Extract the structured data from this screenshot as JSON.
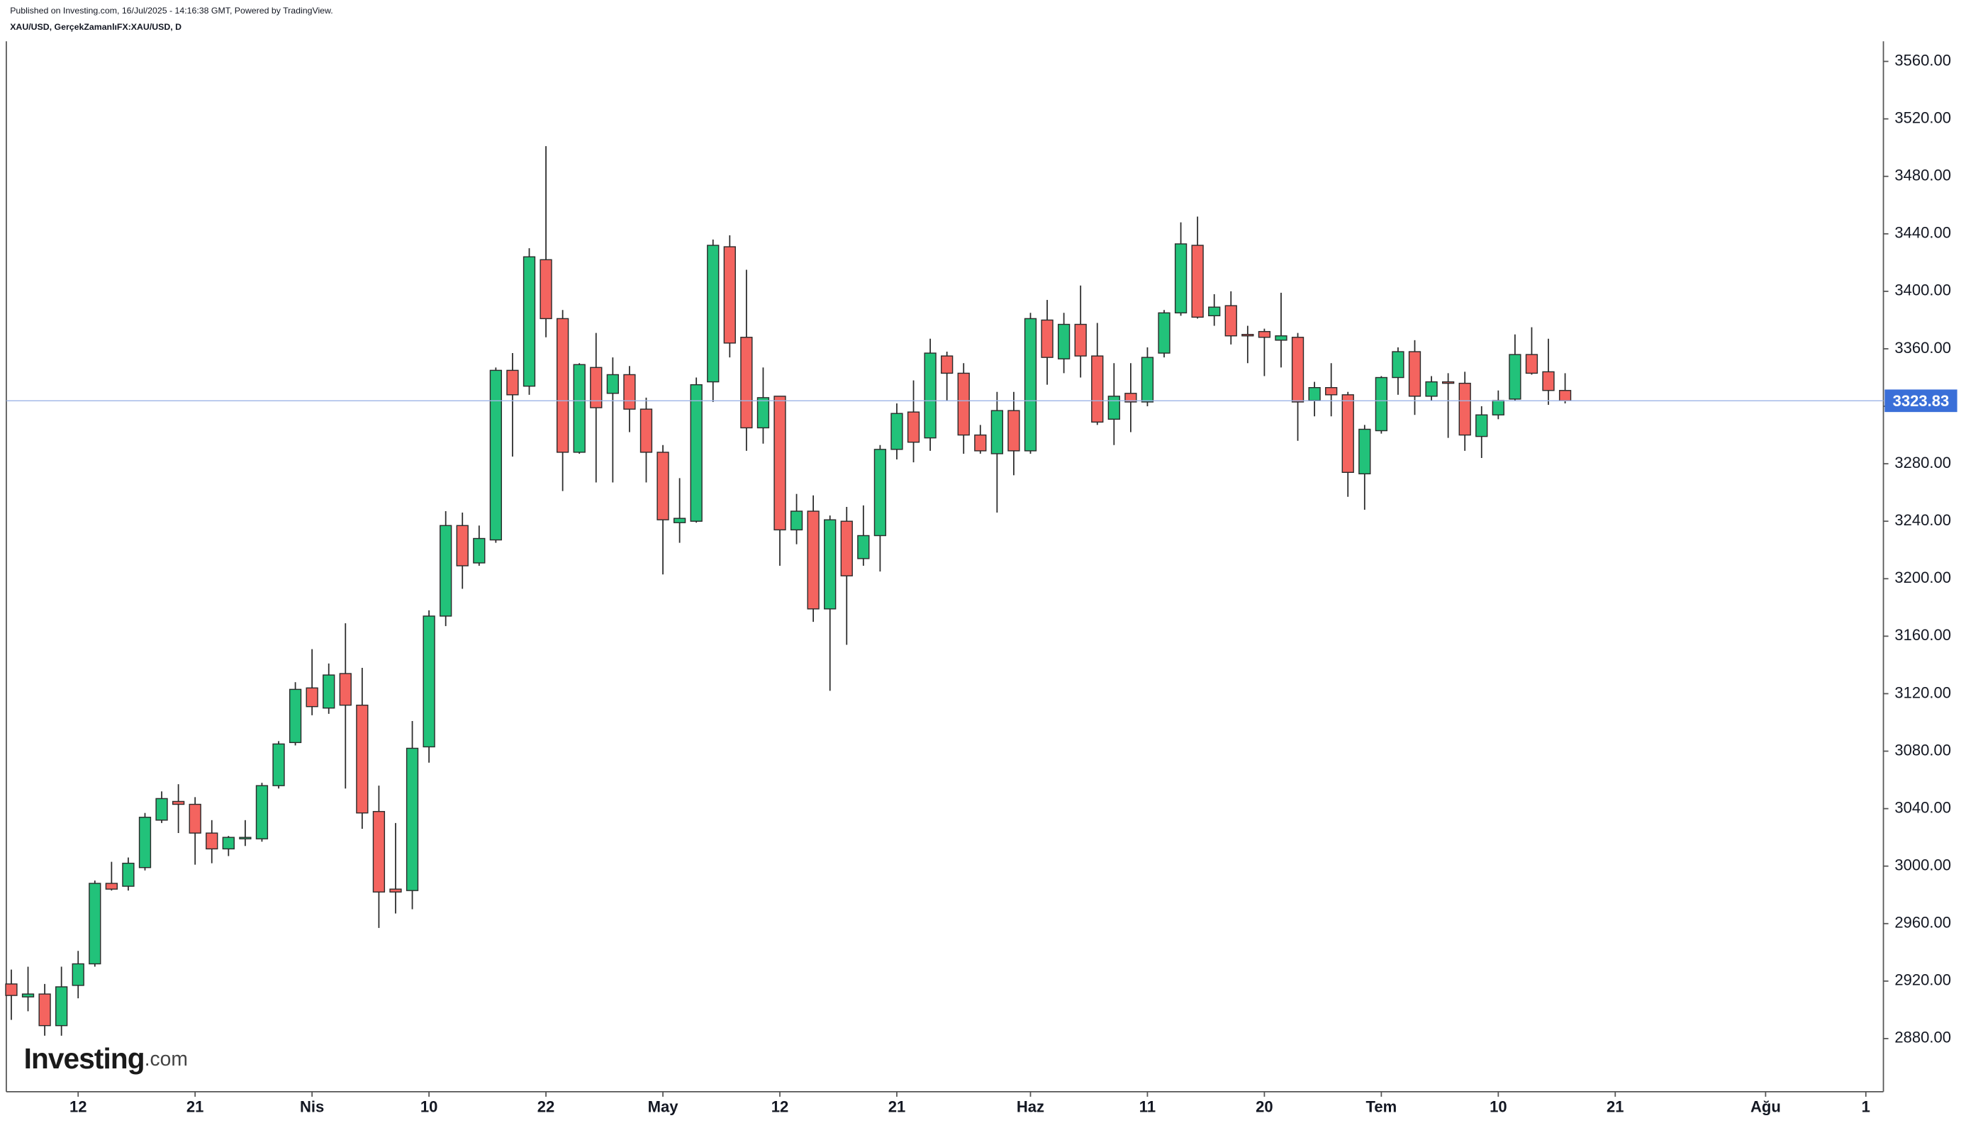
{
  "chart_data": {
    "type": "candlestick",
    "published": "Published on Investing.com, 16/Jul/2025 - 14:16:38 GMT, Powered by TradingView.",
    "symbol": "XAU/USD, GerçekZamanlıFX:XAU/USD, D",
    "watermark": {
      "brand": "Investing",
      "suffix": ".com"
    },
    "colors": {
      "up": "#22c27a",
      "down": "#f4645f",
      "outline": "#2b2b2b",
      "last_price": "#3a6fd8"
    },
    "categories": [
      null,
      null,
      null,
      null,
      "12",
      null,
      null,
      null,
      null,
      null,
      null,
      "21",
      null,
      null,
      null,
      null,
      null,
      null,
      "Nis",
      null,
      null,
      null,
      null,
      null,
      null,
      "10",
      null,
      null,
      null,
      null,
      null,
      null,
      "22",
      null,
      null,
      null,
      null,
      null,
      null,
      "May",
      null,
      null,
      null,
      null,
      null,
      null,
      "12",
      null,
      null,
      null,
      null,
      null,
      null,
      "21",
      null,
      null,
      null,
      null,
      null,
      null,
      null,
      "Haz",
      null,
      null,
      null,
      null,
      null,
      null,
      "11",
      null,
      null,
      null,
      null,
      null,
      null,
      "20",
      null,
      null,
      null,
      null,
      null,
      null,
      "Tem",
      null,
      null,
      null,
      null,
      null,
      null,
      "10",
      null,
      null,
      null,
      null,
      null,
      null,
      "21",
      null,
      null,
      null,
      null,
      null,
      null,
      null,
      null,
      "Ağu",
      null,
      null,
      null,
      null,
      null,
      "1"
    ],
    "open": [
      2918,
      2909,
      2911,
      2889,
      2917,
      2932,
      2988,
      2986,
      2999,
      3032,
      3045,
      3043,
      3023,
      3012,
      3019,
      3019,
      3056,
      3086,
      3124,
      3110,
      3134,
      3112,
      3038,
      2984,
      2983,
      3083,
      3174,
      3237,
      3211,
      3227,
      3345,
      3334,
      3422,
      3381,
      3288,
      3347,
      3329,
      3342,
      3318,
      3288,
      3239,
      3240,
      3337,
      3431,
      3368,
      3305,
      3327,
      3234,
      3247,
      3179,
      3240,
      3214,
      3230,
      3290,
      3316,
      3298,
      3355,
      3343,
      3300,
      3287,
      3317,
      3289,
      3380,
      3353,
      3377,
      3355,
      3311,
      3329,
      3323,
      3357,
      3385,
      3432,
      3383,
      3390,
      3370,
      3372,
      3366,
      3368,
      3324,
      3333,
      3328,
      3273,
      3303,
      3340,
      3358,
      3327,
      3337,
      3336,
      3299,
      3314,
      3325,
      3356,
      3344,
      3331,
      null,
      null,
      null,
      null,
      null,
      null,
      null,
      null,
      null,
      null,
      null,
      null,
      null,
      null,
      null,
      null,
      null,
      null
    ],
    "high": [
      2928,
      2930,
      2918,
      2930,
      2941,
      2990,
      3003,
      3006,
      3037,
      3052,
      3057,
      3048,
      3032,
      3021,
      3032,
      3058,
      3087,
      3128,
      3151,
      3141,
      3169,
      3138,
      3056,
      3030,
      3101,
      3178,
      3247,
      3246,
      3237,
      3347,
      3357,
      3430,
      3501,
      3387,
      3350,
      3371,
      3354,
      3348,
      3326,
      3293,
      3270,
      3340,
      3436,
      3439,
      3415,
      3347,
      3327,
      3259,
      3258,
      3244,
      3250,
      3251,
      3293,
      3322,
      3338,
      3367,
      3358,
      3350,
      3307,
      3330,
      3330,
      3385,
      3394,
      3385,
      3404,
      3378,
      3350,
      3350,
      3361,
      3387,
      3448,
      3452,
      3398,
      3400,
      3376,
      3374,
      3399,
      3371,
      3337,
      3350,
      3330,
      3307,
      3341,
      3361,
      3366,
      3341,
      3343,
      3344,
      3320,
      3331,
      3370,
      3375,
      3367,
      3343,
      null,
      null,
      null,
      null,
      null,
      null,
      null,
      null,
      null,
      null,
      null,
      null,
      null,
      null,
      null,
      null,
      null,
      null
    ],
    "low": [
      2893,
      2899,
      2882,
      2882,
      2908,
      2930,
      2983,
      2983,
      2997,
      3030,
      3023,
      3001,
      3002,
      3007,
      3014,
      3017,
      3054,
      3084,
      3105,
      3106,
      3054,
      3026,
      2957,
      2967,
      2970,
      3072,
      3167,
      3193,
      3209,
      3225,
      3285,
      3328,
      3368,
      3261,
      3287,
      3267,
      3267,
      3302,
      3267,
      3203,
      3225,
      3239,
      3323,
      3354,
      3289,
      3294,
      3209,
      3224,
      3170,
      3122,
      3154,
      3209,
      3205,
      3283,
      3281,
      3289,
      3324,
      3287,
      3287,
      3246,
      3272,
      3287,
      3335,
      3343,
      3340,
      3307,
      3293,
      3302,
      3320,
      3354,
      3383,
      3381,
      3376,
      3363,
      3350,
      3341,
      3347,
      3296,
      3313,
      3313,
      3257,
      3248,
      3301,
      3328,
      3314,
      3324,
      3298,
      3289,
      3284,
      3311,
      3324,
      3342,
      3321,
      3322,
      null,
      null,
      null,
      null,
      null,
      null,
      null,
      null,
      null,
      null,
      null,
      null,
      null,
      null,
      null,
      null,
      null,
      null
    ],
    "close": [
      2910,
      2911,
      2889,
      2916,
      2932,
      2988,
      2984,
      3002,
      3034,
      3047,
      3043,
      3023,
      3012,
      3020,
      3020,
      3056,
      3085,
      3123,
      3111,
      3133,
      3112,
      3037,
      2982,
      2982,
      3082,
      3174,
      3237,
      3209,
      3228,
      3345,
      3328,
      3424,
      3381,
      3288,
      3349,
      3319,
      3342,
      3318,
      3288,
      3241,
      3242,
      3335,
      3432,
      3364,
      3305,
      3326,
      3234,
      3247,
      3179,
      3241,
      3202,
      3230,
      3290,
      3315,
      3295,
      3357,
      3343,
      3300,
      3289,
      3317,
      3289,
      3381,
      3354,
      3377,
      3355,
      3309,
      3327,
      3323,
      3354,
      3385,
      3433,
      3382,
      3389,
      3369,
      3369,
      3368,
      3369,
      3323,
      3333,
      3328,
      3274,
      3304,
      3340,
      3358,
      3327,
      3337,
      3336,
      3300,
      3314,
      3324,
      3356,
      3343,
      3331,
      3323.83,
      null,
      null,
      null,
      null,
      null,
      null,
      null,
      null,
      null,
      null,
      null,
      null,
      null,
      null,
      null,
      null,
      null,
      null
    ],
    "last_price": 3323.83,
    "ylim": [
      2843,
      3574
    ],
    "yticks": [
      {
        "value": 2880,
        "label": "2880.00"
      },
      {
        "value": 2920,
        "label": "2920.00"
      },
      {
        "value": 2960,
        "label": "2960.00"
      },
      {
        "value": 3000,
        "label": "3000.00"
      },
      {
        "value": 3040,
        "label": "3040.00"
      },
      {
        "value": 3080,
        "label": "3080.00"
      },
      {
        "value": 3120,
        "label": "3120.00"
      },
      {
        "value": 3160,
        "label": "3160.00"
      },
      {
        "value": 3200,
        "label": "3200.00"
      },
      {
        "value": 3240,
        "label": "3240.00"
      },
      {
        "value": 3280,
        "label": "3280.00"
      },
      {
        "value": 3320,
        "label": "3320.00"
      },
      {
        "value": 3360,
        "label": "3360.00"
      },
      {
        "value": 3400,
        "label": "3400.00"
      },
      {
        "value": 3440,
        "label": "3440.00"
      },
      {
        "value": 3480,
        "label": "3480.00"
      },
      {
        "value": 3520,
        "label": "3520.00"
      },
      {
        "value": 3560,
        "label": "3560.00"
      }
    ]
  }
}
